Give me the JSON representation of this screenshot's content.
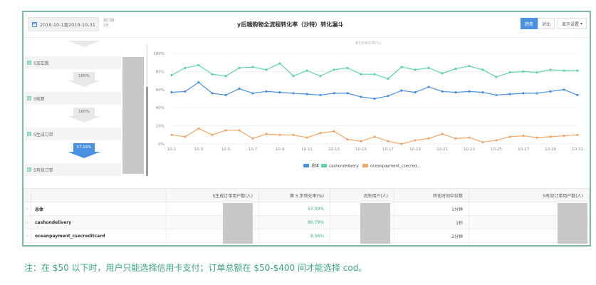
{
  "header": {
    "date_range": "2018-10-1至2018-10-31",
    "window_label": "窗口期:",
    "window_value": "2天",
    "title": "y后端购物全流程转化率（沙特）转化漏斗",
    "btn_trend": "趋势",
    "btn_compare": "对比",
    "btn_display": "显示设置",
    "colors": {
      "accent": "#4a90e2",
      "frame": "#7fb8a0"
    }
  },
  "funnel": {
    "steps": [
      {
        "num": "3",
        "label": "S加车数"
      },
      {
        "num": "4",
        "label": "S结算"
      },
      {
        "num": "5",
        "label": "S生成订单"
      },
      {
        "num": "6",
        "label": "S有效订单"
      }
    ],
    "rates": [
      "100%",
      "100%",
      "57.09%"
    ],
    "active_rate_index": 2
  },
  "chart_data": {
    "type": "line",
    "title": "第5步转化率(%)",
    "x": [
      "10-1",
      "10-2",
      "10-3",
      "10-4",
      "10-5",
      "10-6",
      "10-7",
      "10-8",
      "10-9",
      "10-10",
      "10-11",
      "10-12",
      "10-13",
      "10-14",
      "10-15",
      "10-16",
      "10-17",
      "10-18",
      "10-19",
      "10-20",
      "10-21",
      "10-22",
      "10-23",
      "10-24",
      "10-25",
      "10-26",
      "10-27",
      "10-28",
      "10-29",
      "10-30",
      "10-31"
    ],
    "xticks": [
      "10-1",
      "10-3",
      "10-5",
      "10-7",
      "10-9",
      "10-11",
      "10-13",
      "10-15",
      "10-17",
      "10-19",
      "10-21",
      "10-23",
      "10-25",
      "10-27",
      "10-29",
      "10-31"
    ],
    "yticks": [
      "0%",
      "20%",
      "40%",
      "60%",
      "80%",
      "100%"
    ],
    "ylim": [
      0,
      100
    ],
    "grid": true,
    "legend": "bottom",
    "series": [
      {
        "name": "总体",
        "color": "#4a90e2",
        "values": [
          57,
          58,
          68,
          56,
          54,
          61,
          56,
          58,
          57,
          56,
          55,
          54,
          56,
          56,
          52,
          50,
          53,
          59,
          57,
          63,
          58,
          57,
          58,
          57,
          54,
          55,
          56,
          56,
          58,
          60,
          54
        ]
      },
      {
        "name": "cashondelivery",
        "color": "#5fd3a8",
        "values": [
          76,
          84,
          87,
          77,
          75,
          84,
          85,
          82,
          89,
          75,
          81,
          75,
          82,
          84,
          77,
          77,
          72,
          85,
          82,
          84,
          78,
          83,
          86,
          82,
          74,
          79,
          80,
          79,
          82,
          81,
          81
        ]
      },
      {
        "name": "oceanpayment_csecred...",
        "color": "#f0a868",
        "values": [
          10,
          8,
          17,
          10,
          15,
          15,
          6,
          11,
          10,
          10,
          7,
          12,
          14,
          5,
          3,
          8,
          3,
          0,
          4,
          6,
          11,
          6,
          7,
          2,
          4,
          8,
          9,
          7,
          8,
          9,
          10
        ]
      }
    ]
  },
  "table": {
    "headers": [
      "S生成订单用户数(人)",
      "第 5 步转化率(%)",
      "流失用户(人)",
      "转化时间中位数",
      "S有效订单用户数(人)"
    ],
    "rows": [
      {
        "name": "总体",
        "rate": "57.09%",
        "median": "1分钟"
      },
      {
        "name": "cashondelivery",
        "rate": "80.79%",
        "median": "1秒"
      },
      {
        "name": "oceanpayment_csecreditcard",
        "rate": "8.56%",
        "median": "2分钟"
      }
    ]
  },
  "note": "注：在 $50 以下时，用户只能选择信用卡支付；订单总额在 $50-$400 间才能选择 cod。"
}
